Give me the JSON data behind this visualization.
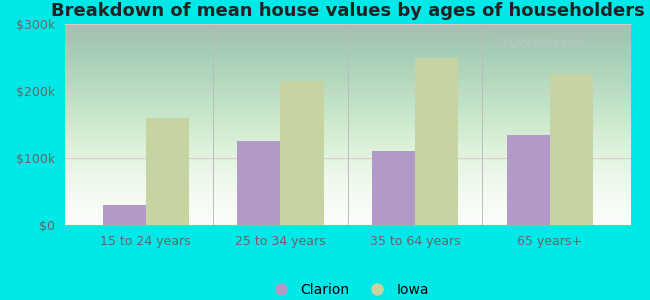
{
  "title": "Breakdown of mean house values by ages of householders",
  "categories": [
    "15 to 24 years",
    "25 to 34 years",
    "35 to 64 years",
    "65 years+"
  ],
  "clarion_values": [
    30000,
    125000,
    110000,
    135000
  ],
  "iowa_values": [
    160000,
    215000,
    250000,
    225000
  ],
  "clarion_color": "#b399c8",
  "iowa_color": "#c5d4a0",
  "background_color": "#00e8e8",
  "ylim": [
    0,
    300000
  ],
  "yticks": [
    0,
    100000,
    200000,
    300000
  ],
  "ytick_labels": [
    "$0",
    "$100k",
    "$200k",
    "$300k"
  ],
  "bar_width": 0.32,
  "legend_labels": [
    "Clarion",
    "Iowa"
  ],
  "title_fontsize": 13,
  "tick_fontsize": 9,
  "legend_fontsize": 10,
  "grid_color": "#e0c8d0",
  "watermark_color": "#c0c8cc"
}
